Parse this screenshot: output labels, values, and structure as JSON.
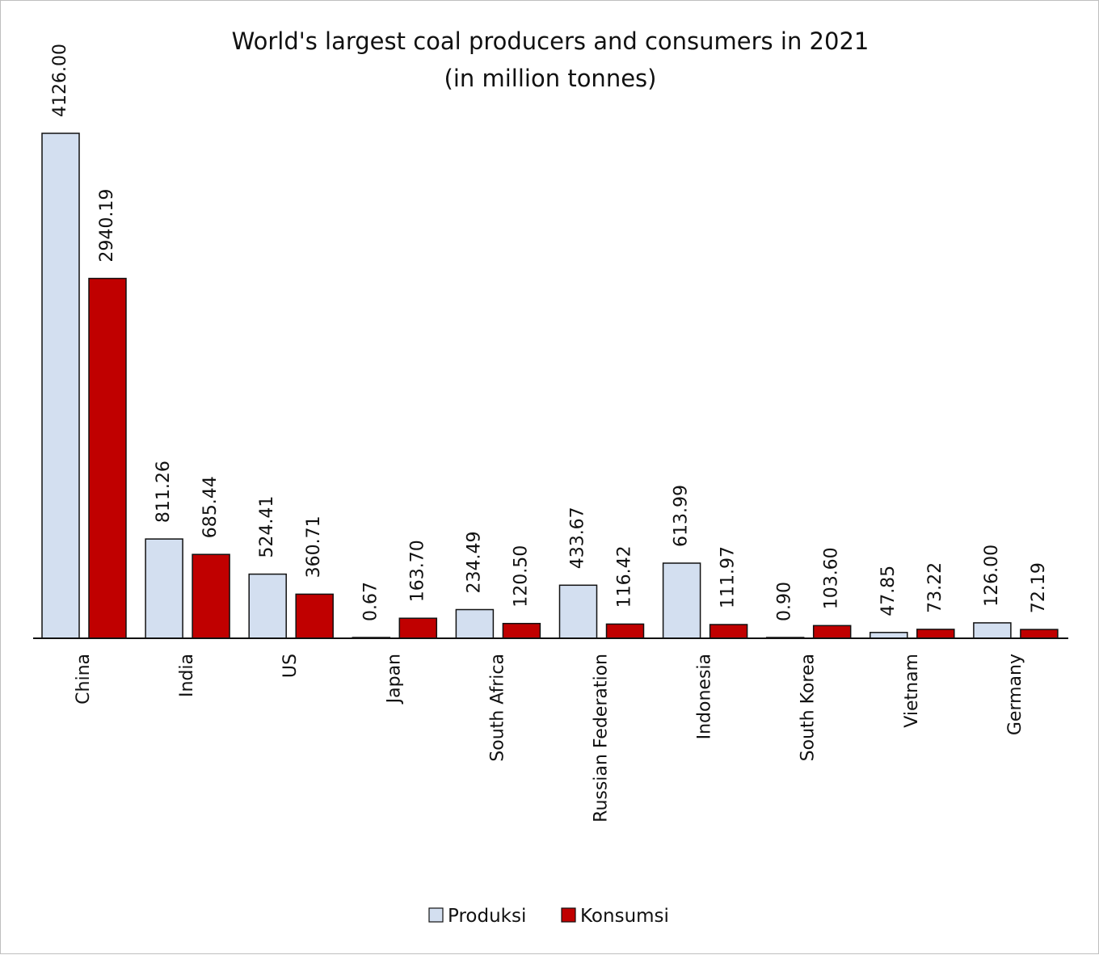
{
  "chart_data": {
    "type": "bar",
    "title": "World's largest coal producers and consumers in 2021",
    "subtitle": "(in million tonnes)",
    "xlabel": "",
    "ylabel": "",
    "ylim": [
      0,
      4126
    ],
    "grid": false,
    "legend_position": "bottom",
    "categories": [
      "China",
      "India",
      "US",
      "Japan",
      "South Africa",
      "Russian Federation",
      "Indonesia",
      "South Korea",
      "Vietnam",
      "Germany"
    ],
    "series": [
      {
        "name": "Produksi",
        "color": "#d3dff0",
        "values": [
          4126.0,
          811.26,
          524.41,
          0.67,
          234.49,
          433.67,
          613.99,
          0.9,
          47.85,
          126.0
        ],
        "labels": [
          "4126.00",
          "811.26",
          "524.41",
          "0.67",
          "234.49",
          "433.67",
          "613.99",
          "0.90",
          "47.85",
          "126.00"
        ]
      },
      {
        "name": "Konsumsi",
        "color": "#c00000",
        "values": [
          2940.19,
          685.44,
          360.71,
          163.7,
          120.5,
          116.42,
          111.97,
          103.6,
          73.22,
          72.19
        ],
        "labels": [
          "2940.19",
          "685.44",
          "360.71",
          "163.70",
          "120.50",
          "116.42",
          "111.97",
          "103.60",
          "73.22",
          "72.19"
        ]
      }
    ]
  }
}
